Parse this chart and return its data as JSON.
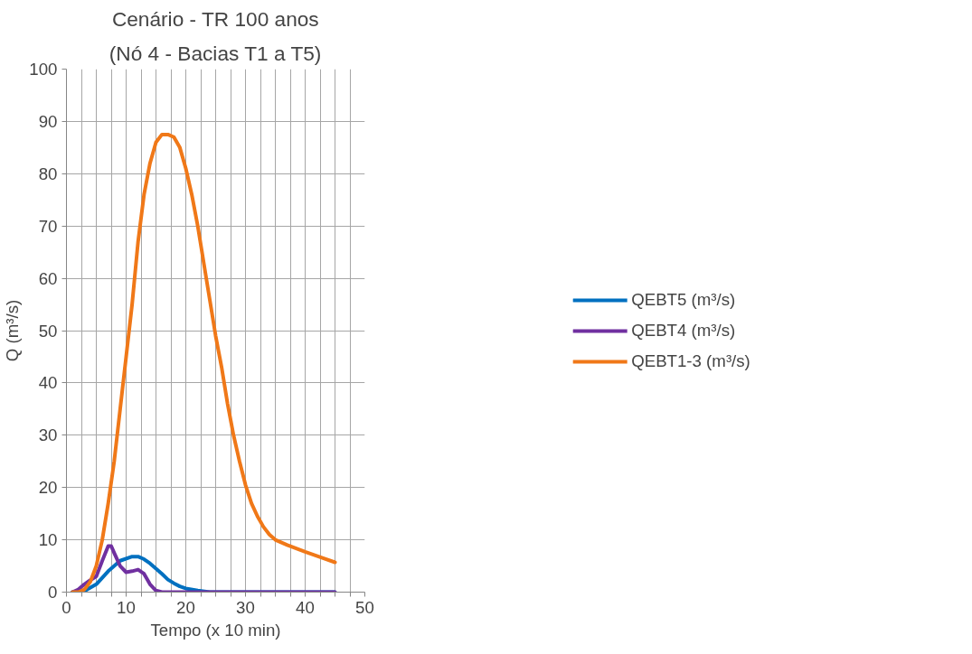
{
  "chart_data": {
    "type": "line",
    "title": "Cenário - TR 100 anos",
    "subtitle": "(Nó 4 - Bacias T1 a T5)",
    "xlabel": "Tempo (x 10 min)",
    "ylabel": "Q (m³/s)",
    "xlim": [
      0,
      50
    ],
    "xticks": [
      0,
      {
        "value": 2.5,
        "label": null
      },
      {
        "value": 5,
        "label": null
      },
      {
        "value": 7.5,
        "label": null
      },
      10,
      {
        "value": 12.5,
        "label": null
      },
      {
        "value": 15,
        "label": null
      },
      {
        "value": 17.5,
        "label": null
      },
      20,
      {
        "value": 22.5,
        "label": null
      },
      {
        "value": 25,
        "label": null
      },
      {
        "value": 27.5,
        "label": null
      },
      30,
      {
        "value": 32.5,
        "label": null
      },
      {
        "value": 35,
        "label": null
      },
      {
        "value": 37.5,
        "label": null
      },
      40,
      {
        "value": 42.5,
        "label": null
      },
      {
        "value": 45,
        "label": null
      },
      {
        "value": 47.5,
        "label": null
      },
      50
    ],
    "ylim": [
      0,
      100
    ],
    "yticks": [
      0,
      10,
      20,
      30,
      40,
      50,
      60,
      70,
      80,
      90,
      100
    ],
    "grid": true,
    "legend": "right",
    "marker": "none",
    "line_style": "solid",
    "series": [
      {
        "name": "QEBT5 (m³/s)",
        "color": "#0070c0",
        "x": [
          1,
          3,
          5,
          7,
          9,
          11,
          12,
          13,
          14,
          15,
          16,
          17,
          18,
          19,
          20,
          22,
          24,
          45
        ],
        "values": [
          0,
          0.2,
          1.5,
          4,
          6,
          6.8,
          6.8,
          6.3,
          5.5,
          4.5,
          3.5,
          2.4,
          1.7,
          1.1,
          0.7,
          0.3,
          0,
          0
        ]
      },
      {
        "name": "QEBT4 (m³/s)",
        "color": "#7030a0",
        "x": [
          1,
          2,
          3,
          4,
          5,
          6,
          7,
          7.5,
          8,
          9,
          10,
          11,
          12,
          13,
          14,
          15,
          16,
          45
        ],
        "values": [
          0,
          0.5,
          1.5,
          2.3,
          3,
          6,
          8.8,
          8.8,
          7.5,
          5,
          3.8,
          4,
          4.3,
          3.5,
          1.5,
          0.3,
          0,
          0
        ]
      },
      {
        "name": "QEBT1-3 (m³/s)",
        "color": "#f07818",
        "x": [
          1,
          2,
          3,
          4,
          5,
          6,
          7,
          8,
          9,
          10,
          11,
          12,
          13,
          14,
          15,
          16,
          17,
          18,
          19,
          20,
          21,
          22,
          23,
          24,
          25,
          26,
          27,
          28,
          29,
          30,
          31,
          32,
          33,
          34,
          35,
          37,
          40,
          43,
          45
        ],
        "values": [
          0,
          0,
          0.5,
          2,
          5,
          10,
          17,
          25,
          35,
          45,
          55,
          67,
          76,
          82,
          86,
          87.5,
          87.5,
          87,
          85,
          81,
          76,
          70,
          63,
          56,
          49,
          43,
          36,
          30,
          25,
          20.5,
          17,
          14.5,
          12.5,
          11,
          10,
          9,
          7.7,
          6.5,
          5.7
        ]
      }
    ]
  }
}
